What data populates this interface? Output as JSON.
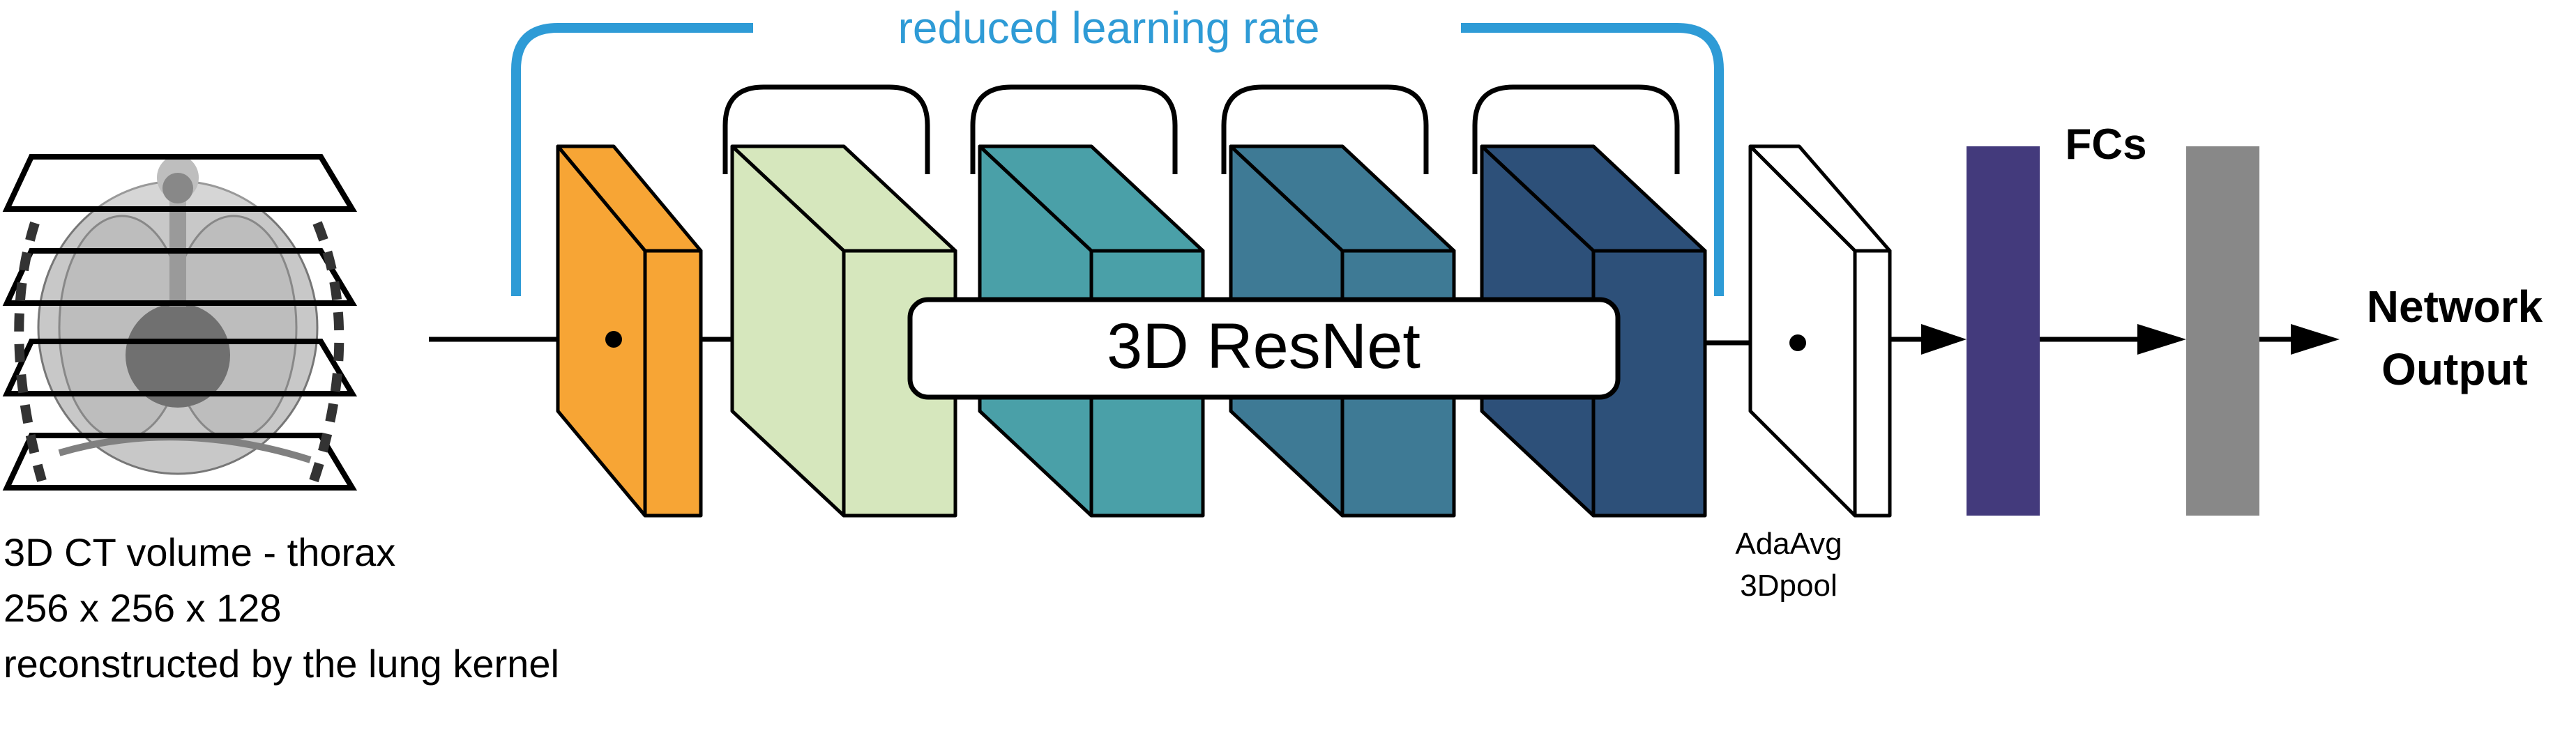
{
  "input": {
    "caption_lines": [
      "3D CT volume - thorax",
      "256 x 256 x 128",
      "reconstructed by the lung kernel"
    ]
  },
  "bracket_label": "reduced learning rate",
  "resnet_label": "3D ResNet",
  "pool_label_lines": [
    "AdaAvg",
    "3Dpool"
  ],
  "fc_label": "FCs",
  "output_label_lines": [
    "Network",
    "Output"
  ],
  "colors": {
    "accent_blue": "#2e9bd6",
    "conv_orange": "#f7a535",
    "block1": "#d6e7bd",
    "block2": "#4aa0a8",
    "block3": "#3e7a95",
    "block4": "#2d5079",
    "fc1": "#433a7c",
    "fc2": "#888888"
  },
  "icons": [
    "ct-volume-icon",
    "arrow-icon"
  ]
}
